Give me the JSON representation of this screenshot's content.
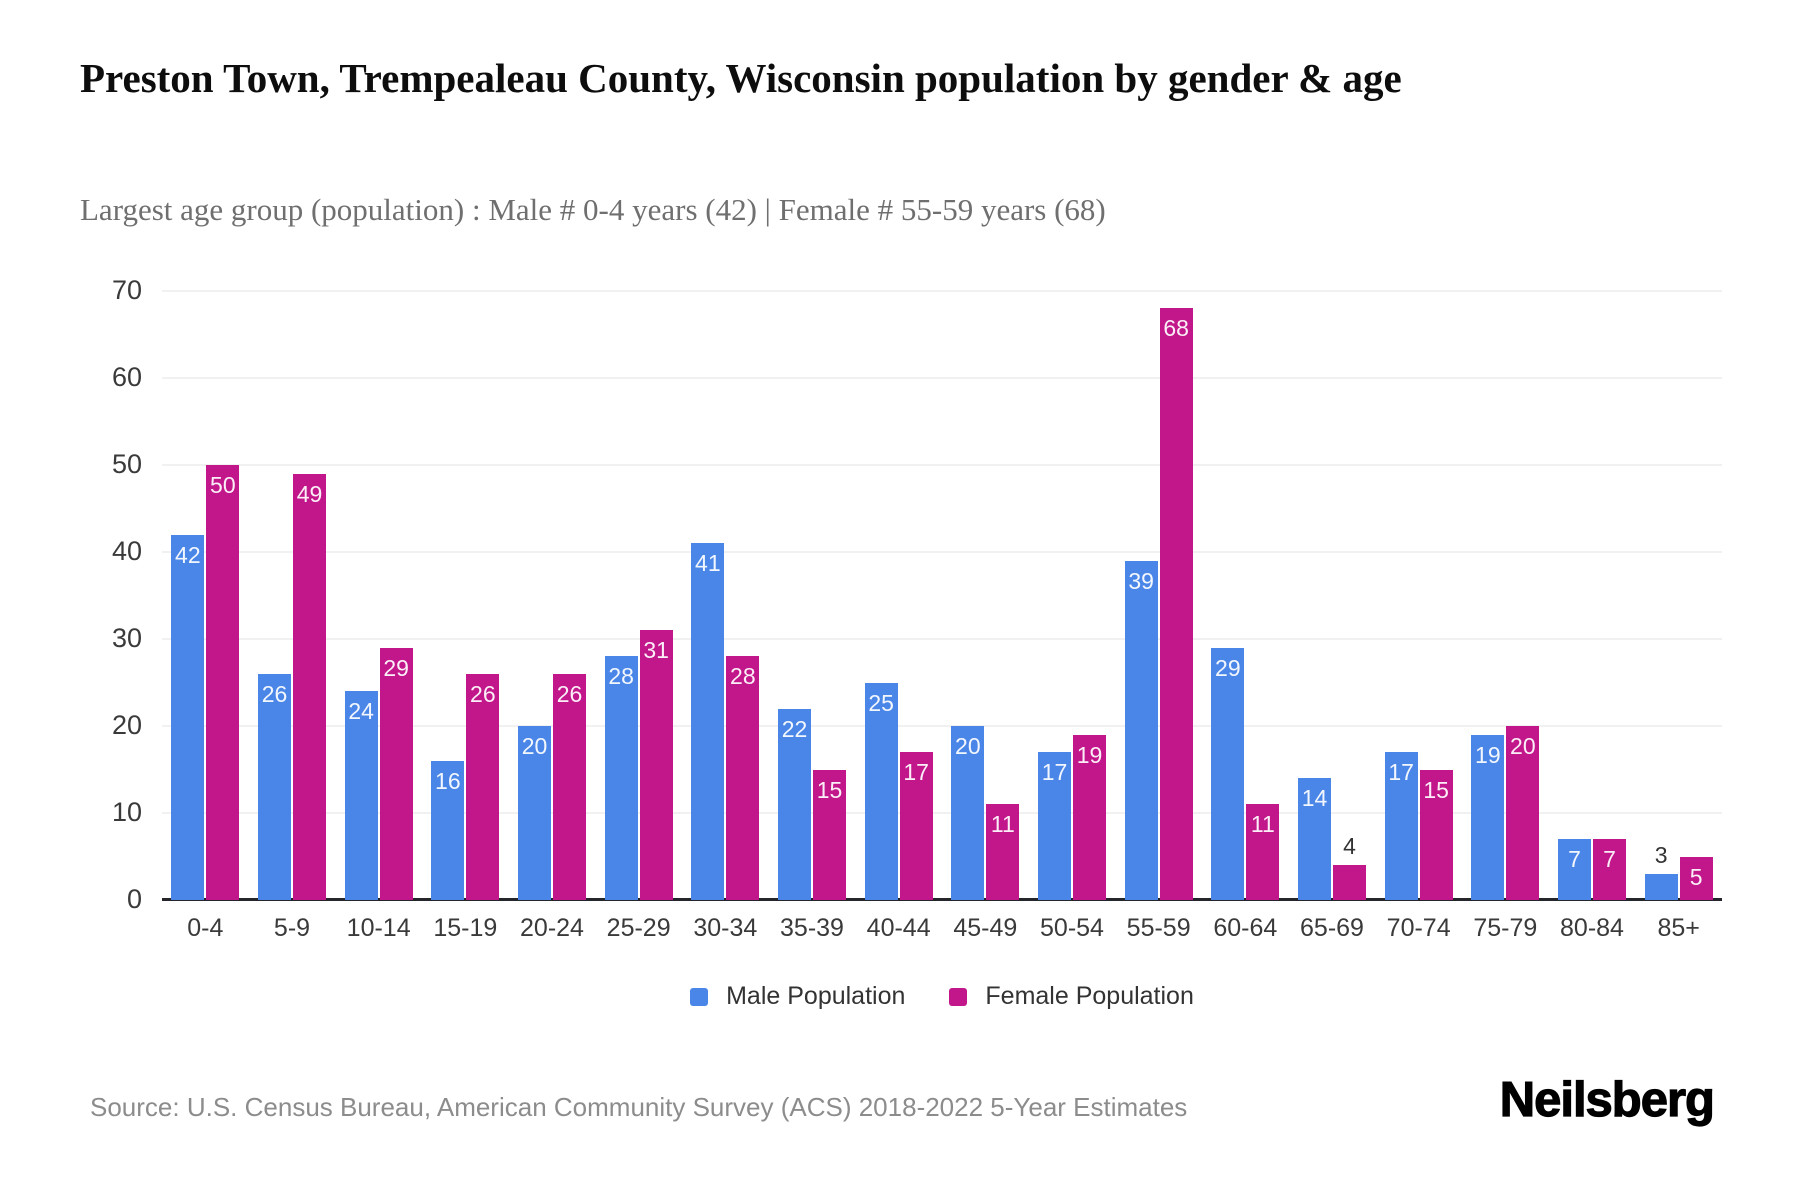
{
  "header": {
    "title": "Preston Town, Trempealeau County, Wisconsin population by gender & age",
    "subtitle": "Largest age group (population) : Male # 0-4 years (42) | Female # 55-59 years (68)"
  },
  "chart_data": {
    "type": "bar",
    "title": "Preston Town, Trempealeau County, Wisconsin population by gender & age",
    "categories": [
      "0-4",
      "5-9",
      "10-14",
      "15-19",
      "20-24",
      "25-29",
      "30-34",
      "35-39",
      "40-44",
      "45-49",
      "50-54",
      "55-59",
      "60-64",
      "65-69",
      "70-74",
      "75-79",
      "80-84",
      "85+"
    ],
    "series": [
      {
        "name": "Male Population",
        "color": "#4a86e8",
        "values": [
          42,
          26,
          24,
          16,
          20,
          28,
          41,
          22,
          25,
          20,
          17,
          39,
          29,
          14,
          17,
          19,
          7,
          3
        ]
      },
      {
        "name": "Female Population",
        "color": "#c2178b",
        "values": [
          50,
          49,
          29,
          26,
          26,
          31,
          28,
          15,
          17,
          11,
          19,
          68,
          11,
          4,
          15,
          20,
          7,
          5
        ]
      }
    ],
    "xlabel": "",
    "ylabel": "",
    "ylim": [
      0,
      70
    ],
    "yticks": [
      0,
      10,
      20,
      30,
      40,
      50,
      60,
      70
    ],
    "grid": true,
    "legend_position": "bottom",
    "colors": {
      "grid": "#f1f1f2",
      "axis": "#25252c",
      "tick_text": "#3a3a3a",
      "value_label_inside": "#ffffff",
      "value_label_above": "#333333"
    }
  },
  "footer": {
    "source": "Source: U.S. Census Bureau, American Community Survey (ACS) 2018-2022 5-Year Estimates",
    "logo": "Neilsberg"
  }
}
